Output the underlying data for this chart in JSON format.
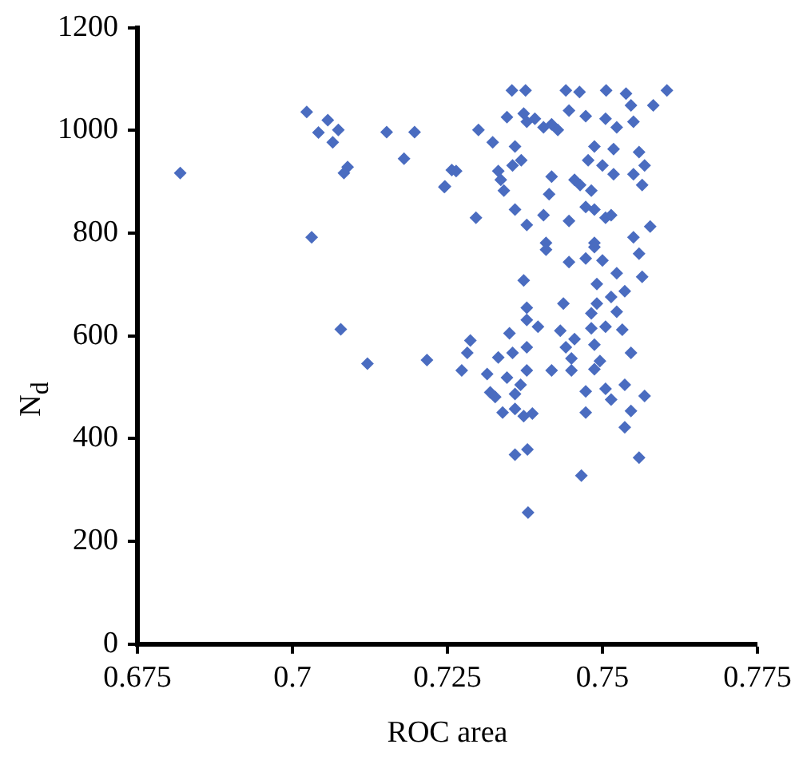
{
  "chart_data": {
    "type": "scatter",
    "xlabel": "ROC area",
    "ylabel": "N$_{d}$",
    "marker": "diamond",
    "grid": false,
    "legend": false,
    "xlim": [
      0.675,
      0.775
    ],
    "xticks": [
      0.675,
      0.7,
      0.725,
      0.75,
      0.775
    ],
    "ylim": [
      0,
      1200
    ],
    "yticks": [
      0,
      200,
      400,
      600,
      800,
      1000,
      1200
    ],
    "series": [
      {
        "color": "#4a6cc0",
        "x": [
          0.6819,
          0.7023,
          0.7057,
          0.7042,
          0.7074,
          0.7065,
          0.7089,
          0.7083,
          0.7031,
          0.7078,
          0.7121,
          0.7152,
          0.7197,
          0.718,
          0.7217,
          0.7245,
          0.7257,
          0.7346,
          0.7373,
          0.7391,
          0.7405,
          0.7418,
          0.7428,
          0.7378,
          0.7446,
          0.7473,
          0.7505,
          0.7523,
          0.755,
          0.7582,
          0.7546,
          0.73,
          0.7323,
          0.7359,
          0.7355,
          0.7369,
          0.7332,
          0.7336,
          0.7264,
          0.7246,
          0.7341,
          0.7359,
          0.7296,
          0.7378,
          0.7405,
          0.7418,
          0.7414,
          0.7455,
          0.7464,
          0.7482,
          0.7473,
          0.7487,
          0.7446,
          0.7505,
          0.7514,
          0.755,
          0.7577,
          0.7487,
          0.7518,
          0.7477,
          0.75,
          0.7518,
          0.755,
          0.7559,
          0.7568,
          0.7564,
          0.7409,
          0.7487,
          0.7409,
          0.7446,
          0.7473,
          0.7487,
          0.75,
          0.7559,
          0.7373,
          0.7491,
          0.7523,
          0.7564,
          0.7536,
          0.7514,
          0.7437,
          0.7491,
          0.7378,
          0.7482,
          0.7523,
          0.7378,
          0.7396,
          0.735,
          0.7432,
          0.7455,
          0.7482,
          0.7505,
          0.7532,
          0.7287,
          0.7282,
          0.7332,
          0.7355,
          0.7378,
          0.7441,
          0.745,
          0.7487,
          0.7496,
          0.7487,
          0.7546,
          0.7273,
          0.7314,
          0.7346,
          0.7378,
          0.7418,
          0.745,
          0.7368,
          0.7319,
          0.7327,
          0.7359,
          0.7473,
          0.7505,
          0.7536,
          0.7514,
          0.7568,
          0.7339,
          0.7359,
          0.7373,
          0.7387,
          0.7473,
          0.7546,
          0.7536,
          0.7359,
          0.7379,
          0.7559,
          0.7466,
          0.738,
          0.7354,
          0.7376,
          0.7441,
          0.7463,
          0.7506,
          0.7538,
          0.7604
        ],
        "values": [
          917,
          1036,
          1020,
          996,
          1001,
          977,
          929,
          917,
          792,
          613,
          546,
          997,
          997,
          945,
          553,
          890,
          923,
          1026,
          1033,
          1023,
          1006,
          1012,
          1001,
          1017,
          1039,
          1028,
          1023,
          1006,
          1017,
          1049,
          1049,
          1001,
          977,
          969,
          932,
          942,
          921,
          904,
          921,
          891,
          883,
          846,
          830,
          816,
          835,
          910,
          876,
          904,
          894,
          883,
          851,
          846,
          824,
          830,
          835,
          792,
          813,
          969,
          964,
          942,
          932,
          915,
          915,
          958,
          932,
          894,
          781,
          781,
          768,
          744,
          751,
          773,
          747,
          760,
          708,
          701,
          722,
          715,
          687,
          676,
          663,
          663,
          655,
          644,
          647,
          631,
          618,
          605,
          610,
          594,
          615,
          618,
          612,
          591,
          567,
          558,
          567,
          578,
          578,
          556,
          583,
          551,
          535,
          567,
          533,
          526,
          519,
          533,
          533,
          533,
          505,
          490,
          481,
          487,
          492,
          497,
          505,
          476,
          483,
          451,
          458,
          444,
          449,
          451,
          454,
          422,
          369,
          379,
          363,
          328,
          256,
          1078,
          1078,
          1078,
          1075,
          1078,
          1072,
          1078
        ]
      }
    ]
  }
}
